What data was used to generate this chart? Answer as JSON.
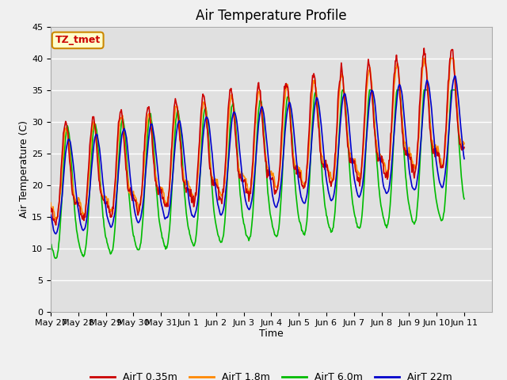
{
  "title": "Air Temperature Profile",
  "xlabel": "Time",
  "ylabel": "Air Temperature (C)",
  "ylim": [
    0,
    45
  ],
  "colors": {
    "AirT 0.35m": "#cc0000",
    "AirT 1.8m": "#ff8800",
    "AirT 6.0m": "#00bb00",
    "AirT 22m": "#0000cc"
  },
  "xtick_labels": [
    "May 27",
    "May 28",
    "May 29",
    "May 30",
    "May 31",
    "Jun 1",
    "Jun 2",
    "Jun 3",
    "Jun 4",
    "Jun 5",
    "Jun 6",
    "Jun 7",
    "Jun 8",
    "Jun 9",
    "Jun 10",
    "Jun 11"
  ],
  "annotation_text": "TZ_tmet",
  "annotation_color": "#cc0000",
  "annotation_bg": "#ffffcc",
  "fig_facecolor": "#f0f0f0",
  "ax_facecolor": "#e0e0e0",
  "grid_color": "#ffffff",
  "title_fontsize": 12,
  "axis_label_fontsize": 9,
  "tick_fontsize": 8
}
